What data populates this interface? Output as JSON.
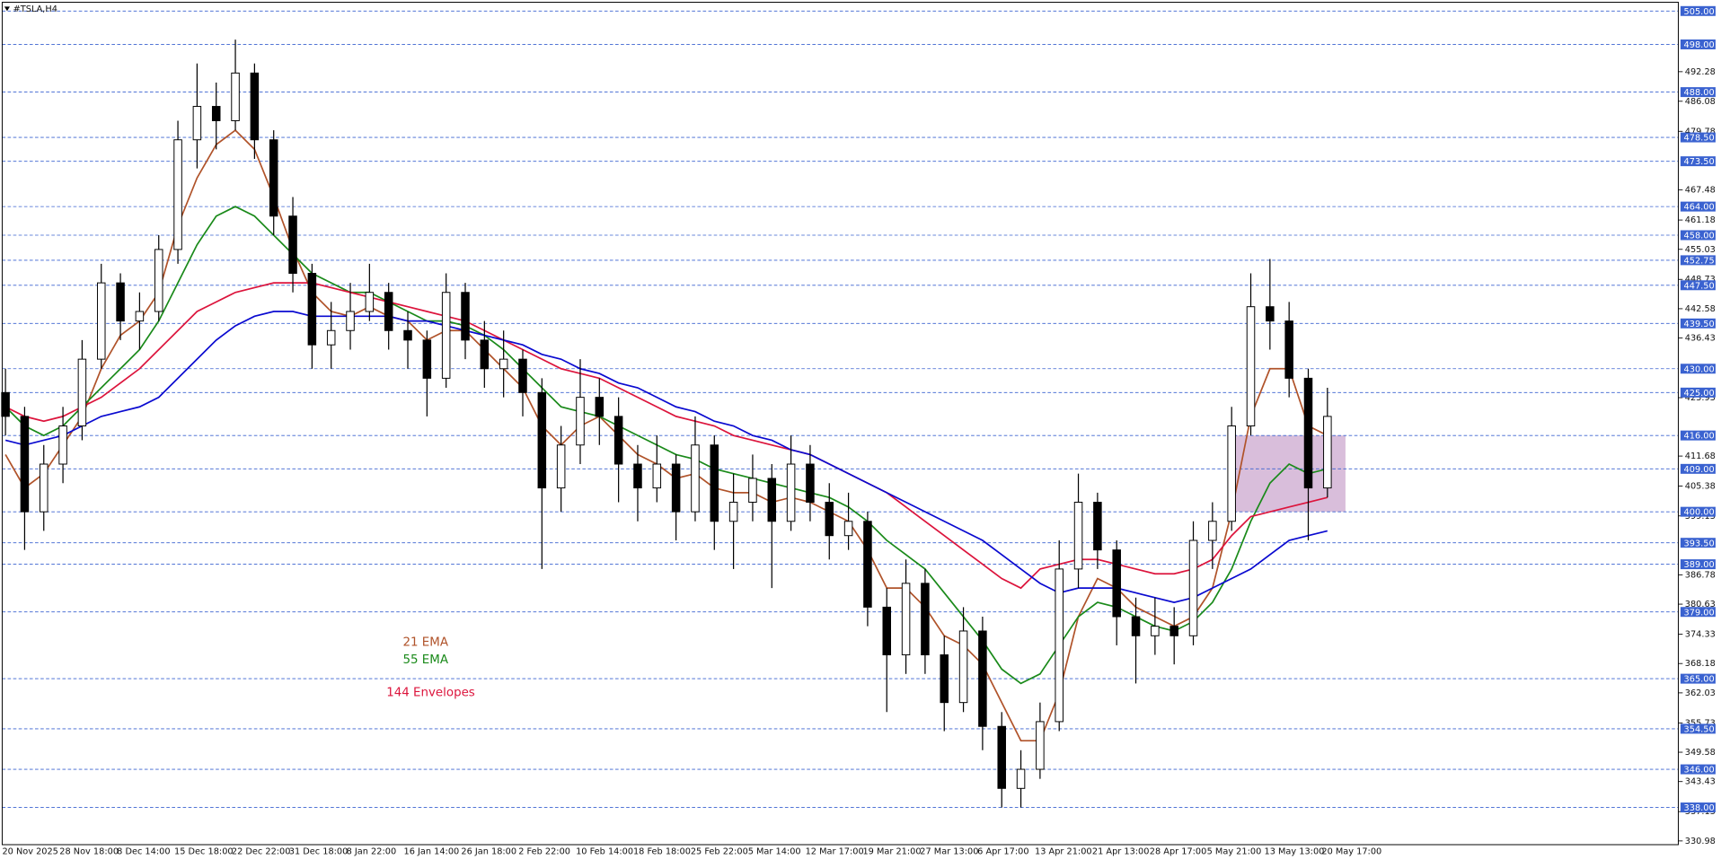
{
  "chart_data": {
    "type": "candlestick",
    "title": "#TSLA,H4",
    "ylim": [
      330.2,
      507.3
    ],
    "yticks": [
      492.28,
      486.08,
      479.78,
      467.48,
      461.18,
      455.03,
      448.73,
      442.58,
      436.43,
      423.93,
      411.68,
      405.38,
      399.13,
      386.78,
      380.63,
      374.33,
      368.18,
      362.03,
      355.73,
      349.58,
      343.43,
      337.13,
      330.98
    ],
    "levels": [
      {
        "value": 505,
        "label": "505.00"
      },
      {
        "value": 498,
        "label": "498.00"
      },
      {
        "value": 488,
        "label": "488.00"
      },
      {
        "value": 478.5,
        "label": "478.50"
      },
      {
        "value": 473.5,
        "label": "473.50"
      },
      {
        "value": 464,
        "label": "464.00"
      },
      {
        "value": 458,
        "label": "458.00"
      },
      {
        "value": 452.75,
        "label": "452.75"
      },
      {
        "value": 447.5,
        "label": "447.50"
      },
      {
        "value": 439.5,
        "label": "439.50"
      },
      {
        "value": 430,
        "label": "430.00"
      },
      {
        "value": 425,
        "label": "425.00"
      },
      {
        "value": 416,
        "label": "416.00"
      },
      {
        "value": 409,
        "label": "409.00"
      },
      {
        "value": 400,
        "label": "400.00"
      },
      {
        "value": 393.5,
        "label": "393.50"
      },
      {
        "value": 389,
        "label": "389.00"
      },
      {
        "value": 379,
        "label": "379.00"
      },
      {
        "value": 365,
        "label": "365.00"
      },
      {
        "value": 354.5,
        "label": "354.50"
      },
      {
        "value": 346,
        "label": "346.00"
      },
      {
        "value": 338,
        "label": "338.00"
      }
    ],
    "level_color": "#3a62d0",
    "time_labels": [
      "20 Nov 2025",
      "28 Nov 18:00",
      "8 Dec 14:00",
      "15 Dec 18:00",
      "22 Dec 22:00",
      "31 Dec 18:00",
      "8 Jan 22:00",
      "16 Jan 14:00",
      "26 Jan 18:00",
      "2 Feb 22:00",
      "10 Feb 14:00",
      "18 Feb 18:00",
      "25 Feb 22:00",
      "5 Mar 14:00",
      "12 Mar 17:00",
      "19 Mar 21:00",
      "27 Mar 13:00",
      "6 Apr 17:00",
      "13 Apr 21:00",
      "21 Apr 13:00",
      "28 Apr 17:00",
      "5 May 21:00",
      "13 May 13:00",
      "20 May 17:00"
    ],
    "open": [
      425,
      420,
      400,
      410,
      418,
      432,
      448,
      440,
      442,
      455,
      478,
      485,
      482,
      492,
      478,
      462,
      450,
      435,
      438,
      442,
      446,
      438,
      436,
      428,
      446,
      436,
      430,
      432,
      425,
      405,
      414,
      424,
      420,
      410,
      405,
      410,
      400,
      414,
      398,
      402,
      407,
      398,
      410,
      402,
      395,
      398,
      380,
      370,
      385,
      370,
      360,
      375,
      355,
      342,
      346,
      356,
      388,
      402,
      392,
      378,
      374,
      376,
      374,
      394,
      398,
      418,
      443,
      440,
      428,
      405
    ],
    "high": [
      430,
      422,
      414,
      422,
      436,
      452,
      450,
      446,
      458,
      482,
      494,
      490,
      499,
      494,
      480,
      466,
      452,
      444,
      448,
      452,
      448,
      442,
      438,
      450,
      448,
      440,
      438,
      434,
      428,
      418,
      432,
      428,
      424,
      414,
      416,
      412,
      420,
      416,
      408,
      412,
      410,
      416,
      414,
      406,
      404,
      400,
      384,
      390,
      388,
      374,
      380,
      378,
      358,
      350,
      360,
      394,
      408,
      404,
      394,
      382,
      382,
      380,
      398,
      402,
      422,
      450,
      453,
      444,
      430,
      426
    ],
    "low": [
      416,
      392,
      396,
      406,
      415,
      430,
      436,
      434,
      440,
      452,
      472,
      476,
      480,
      474,
      458,
      446,
      430,
      430,
      434,
      440,
      434,
      430,
      420,
      426,
      432,
      426,
      424,
      420,
      388,
      400,
      410,
      414,
      402,
      398,
      402,
      394,
      398,
      392,
      388,
      398,
      384,
      396,
      398,
      390,
      392,
      376,
      358,
      366,
      366,
      354,
      358,
      350,
      338,
      338,
      344,
      354,
      384,
      388,
      372,
      364,
      370,
      368,
      372,
      388,
      396,
      416,
      434,
      424,
      394,
      403
    ],
    "close": [
      420,
      400,
      410,
      418,
      432,
      448,
      440,
      442,
      455,
      478,
      485,
      482,
      492,
      478,
      462,
      450,
      435,
      438,
      442,
      446,
      438,
      436,
      428,
      446,
      436,
      430,
      432,
      425,
      405,
      414,
      424,
      420,
      410,
      405,
      410,
      400,
      414,
      398,
      402,
      407,
      398,
      410,
      402,
      395,
      398,
      380,
      370,
      385,
      370,
      360,
      375,
      355,
      342,
      346,
      356,
      388,
      402,
      392,
      378,
      374,
      376,
      374,
      394,
      398,
      418,
      443,
      440,
      428,
      405,
      420
    ],
    "series": [
      {
        "name": "21 EMA",
        "color": "#b0532a",
        "values": [
          412,
          405,
          408,
          414,
          420,
          430,
          437,
          440,
          446,
          460,
          470,
          477,
          480,
          476,
          466,
          455,
          446,
          442,
          441,
          443,
          441,
          440,
          436,
          438,
          438,
          434,
          430,
          426,
          418,
          414,
          418,
          420,
          416,
          412,
          410,
          407,
          408,
          405,
          404,
          404,
          402,
          403,
          402,
          400,
          398,
          392,
          384,
          384,
          380,
          374,
          372,
          368,
          360,
          352,
          352,
          362,
          378,
          386,
          384,
          380,
          378,
          376,
          378,
          384,
          400,
          420,
          430,
          430,
          418,
          416
        ]
      },
      {
        "name": "55 EMA",
        "color": "#1a8a1a",
        "values": [
          422,
          418,
          416,
          418,
          422,
          426,
          430,
          434,
          440,
          448,
          456,
          462,
          464,
          462,
          458,
          454,
          450,
          448,
          446,
          446,
          444,
          442,
          440,
          440,
          439,
          437,
          434,
          430,
          426,
          422,
          421,
          420,
          418,
          416,
          414,
          412,
          411,
          409,
          408,
          407,
          406,
          405,
          404,
          403,
          401,
          398,
          394,
          391,
          388,
          383,
          378,
          373,
          367,
          364,
          366,
          372,
          378,
          381,
          380,
          378,
          376,
          375,
          377,
          381,
          388,
          398,
          406,
          410,
          408,
          409
        ]
      },
      {
        "name": "144 Envelopes",
        "color": "#dc143c",
        "values": [
          422,
          420,
          419,
          420,
          422,
          424,
          427,
          430,
          434,
          438,
          442,
          444,
          446,
          447,
          448,
          448,
          448,
          447,
          446,
          445,
          444,
          443,
          442,
          441,
          440,
          438,
          436,
          434,
          432,
          430,
          429,
          428,
          426,
          424,
          422,
          420,
          419,
          418,
          416,
          415,
          414,
          413,
          412,
          410,
          408,
          406,
          404,
          401,
          398,
          395,
          392,
          389,
          386,
          384,
          388,
          389,
          390,
          390,
          389,
          388,
          387,
          387,
          388,
          390,
          395,
          399,
          400,
          401,
          402,
          403
        ]
      },
      {
        "color": "#0a0ad0",
        "values": [
          415,
          414,
          415,
          416,
          418,
          420,
          421,
          422,
          424,
          428,
          432,
          436,
          439,
          441,
          442,
          442,
          441,
          441,
          441,
          441,
          441,
          440,
          440,
          439,
          438,
          437,
          436,
          435,
          433,
          432,
          430,
          429,
          427,
          426,
          424,
          422,
          421,
          419,
          418,
          416,
          415,
          413,
          412,
          410,
          408,
          406,
          404,
          402,
          400,
          398,
          396,
          394,
          391,
          388,
          385,
          383,
          384,
          384,
          384,
          383,
          382,
          381,
          382,
          384,
          386,
          388,
          391,
          394,
          395,
          396
        ]
      }
    ],
    "zone": {
      "top": 416,
      "bottom": 400,
      "color": "#c9a3cc"
    }
  }
}
